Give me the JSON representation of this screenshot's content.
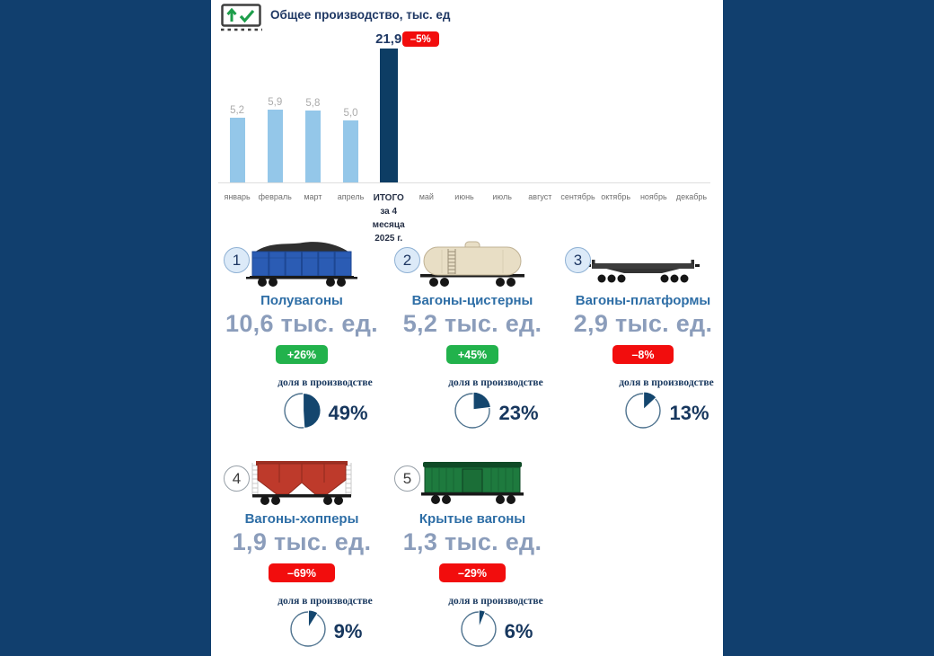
{
  "header": {
    "title": "Общее производство, тыс. ед",
    "icon": "monitor-up-check-icon"
  },
  "chart_data": {
    "type": "bar",
    "title": "Общее производство, тыс. ед",
    "unit": "тыс. ед",
    "categories": [
      "январь",
      "февраль",
      "март",
      "апрель",
      "ИТОГО\nза 4 месяца\n2025 г.",
      "май",
      "июнь",
      "июль",
      "август",
      "сентябрь",
      "октябрь",
      "ноябрь",
      "декабрь"
    ],
    "values": [
      5.2,
      5.9,
      5.8,
      5.0,
      21.9,
      null,
      null,
      null,
      null,
      null,
      null,
      null,
      null
    ],
    "value_labels": [
      "5,2",
      "5,9",
      "5,8",
      "5,0",
      "21,9",
      null,
      null,
      null,
      null,
      null,
      null,
      null,
      null
    ],
    "total_index": 4,
    "total_change_badge": "–5%",
    "bar_color": "#94C7E9",
    "total_bar_color": "#0D3D64",
    "ylim": [
      0,
      22
    ],
    "grid": false,
    "legend": false,
    "layout_note": "total bar truncated to fit plot height"
  },
  "badge_colors": {
    "up": "#22B24C",
    "down": "#F20D0D"
  },
  "cards": [
    {
      "number": "1",
      "name": "Полувагоны",
      "value": "10,6 тыс. ед.",
      "change": "+26%",
      "change_direction": "up",
      "share_label": "доля в производстве",
      "share_percent": 49,
      "share_text": "49%",
      "wagon_icon": "gondola-wagon-icon",
      "wagon_type": "gondola",
      "wagon_color": "#2B5CB4"
    },
    {
      "number": "2",
      "name": "Вагоны-цистерны",
      "value": "5,2 тыс. ед.",
      "change": "+45%",
      "change_direction": "up",
      "share_label": "доля в производстве",
      "share_percent": 23,
      "share_text": "23%",
      "wagon_icon": "tank-wagon-icon",
      "wagon_type": "tank",
      "wagon_color": "#E8DEC5"
    },
    {
      "number": "3",
      "name": "Вагоны-платформы",
      "value": "2,9 тыс. ед.",
      "change": "–8%",
      "change_direction": "down",
      "share_label": "доля в производстве",
      "share_percent": 13,
      "share_text": "13%",
      "wagon_icon": "flat-wagon-icon",
      "wagon_type": "flat",
      "wagon_color": "#3C3C3C"
    },
    {
      "number": "4",
      "name": "Вагоны-хопперы",
      "value": "1,9 тыс. ед.",
      "change": "–69%",
      "change_direction": "down",
      "share_label": "доля в производстве",
      "share_percent": 9,
      "share_text": "9%",
      "wagon_icon": "hopper-wagon-icon",
      "wagon_type": "hopper",
      "wagon_color": "#BE3A2B"
    },
    {
      "number": "5",
      "name": "Крытые вагоны",
      "value": "1,3 тыс. ед.",
      "change": "–29%",
      "change_direction": "down",
      "share_label": "доля в производстве",
      "share_percent": 6,
      "share_text": "6%",
      "wagon_icon": "boxcar-wagon-icon",
      "wagon_type": "boxcar",
      "wagon_color": "#1E7A3E"
    }
  ],
  "pie": {
    "fill_color": "#14466E",
    "outline_color": "#4F738F"
  }
}
